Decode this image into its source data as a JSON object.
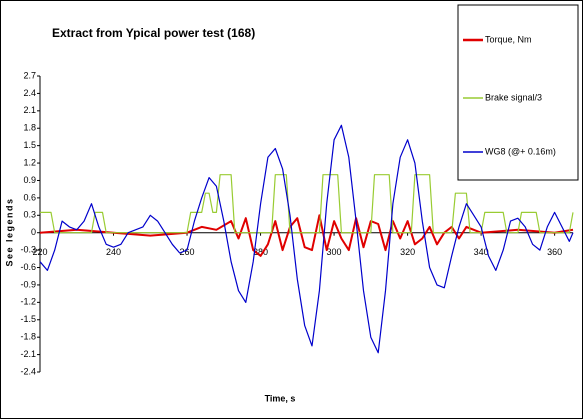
{
  "chart_data": {
    "type": "line",
    "title": "Extract from Ypical power test (168)",
    "x_label": "Time, s",
    "y_label": "See legends",
    "xlim": [
      220,
      365
    ],
    "xticks": [
      220,
      240,
      260,
      280,
      300,
      320,
      340,
      360
    ],
    "ylim": [
      -2.4,
      2.7
    ],
    "yticks": [
      2.7,
      2.4,
      2.1,
      1.8,
      1.5,
      1.2,
      0.9,
      0.6,
      0.3,
      0,
      -0.3,
      -0.6,
      -0.9,
      -1.2,
      -1.5,
      -1.8,
      -2.1,
      -2.4
    ],
    "grid": false,
    "legend": "right",
    "series": [
      {
        "name": "Torque, Nm",
        "color": "#e00000",
        "x": [
          220,
          230,
          240,
          250,
          260,
          264,
          268,
          272,
          274,
          276,
          278,
          280,
          282,
          284,
          286,
          288,
          290,
          292,
          294,
          296,
          298,
          300,
          302,
          304,
          306,
          308,
          310,
          312,
          314,
          316,
          318,
          320,
          322,
          324,
          326,
          328,
          330,
          332,
          334,
          336,
          340,
          350,
          360,
          365
        ],
        "values": [
          0,
          0.05,
          0,
          -0.05,
          0,
          0.1,
          0.05,
          0.2,
          -0.1,
          0.25,
          -0.3,
          -0.4,
          -0.2,
          0.2,
          -0.3,
          0.1,
          0.25,
          -0.25,
          -0.3,
          0.3,
          -0.3,
          0.2,
          -0.1,
          -0.3,
          0.25,
          -0.25,
          0.2,
          0.15,
          -0.3,
          0.2,
          -0.1,
          0.2,
          -0.2,
          -0.1,
          0.1,
          -0.2,
          0,
          0.1,
          -0.1,
          0.1,
          0,
          0.05,
          0,
          0.05
        ]
      },
      {
        "name": "Brake signal/3",
        "color": "#99cc33",
        "x": [
          220,
          223,
          224,
          234,
          235,
          237,
          238,
          260,
          261,
          264,
          265,
          266,
          267,
          268,
          269,
          272,
          273,
          283,
          284,
          287,
          288,
          296,
          297,
          301,
          302,
          310,
          311,
          315,
          316,
          321,
          322,
          326,
          327,
          332,
          333,
          336,
          337,
          340,
          341,
          346,
          347,
          350,
          351,
          355,
          356,
          364,
          365
        ],
        "values": [
          0.35,
          0.35,
          0,
          0,
          0.35,
          0.35,
          0,
          0,
          0.35,
          0.35,
          0.68,
          0.68,
          0.35,
          0.35,
          1.0,
          1.0,
          0,
          0,
          1.0,
          1.0,
          0,
          0,
          1.0,
          1.0,
          0,
          0,
          1.0,
          1.0,
          0,
          0,
          1.0,
          1.0,
          0,
          0,
          0.68,
          0.68,
          0,
          0,
          0.35,
          0.35,
          0,
          0,
          0.35,
          0.35,
          0,
          0,
          0.35
        ]
      },
      {
        "name": "WG8 (@+ 0.16m)",
        "color": "#0000cc",
        "x": [
          220,
          222,
          224,
          226,
          228,
          230,
          232,
          234,
          236,
          238,
          240,
          242,
          244,
          248,
          250,
          252,
          254,
          256,
          258,
          260,
          262,
          264,
          266,
          268,
          270,
          272,
          274,
          276,
          278,
          280,
          282,
          284,
          286,
          288,
          290,
          292,
          294,
          296,
          298,
          300,
          302,
          304,
          306,
          308,
          310,
          312,
          314,
          316,
          318,
          320,
          322,
          324,
          326,
          328,
          330,
          332,
          334,
          336,
          338,
          340,
          342,
          344,
          346,
          348,
          350,
          352,
          354,
          356,
          358,
          360,
          362,
          364,
          365
        ],
        "values": [
          -0.5,
          -0.65,
          -0.3,
          0.2,
          0.1,
          0.05,
          0.2,
          0.5,
          0.1,
          -0.2,
          -0.25,
          -0.2,
          0,
          0.1,
          0.3,
          0.2,
          0,
          -0.2,
          -0.35,
          -0.3,
          0.2,
          0.6,
          0.95,
          0.8,
          0.2,
          -0.5,
          -1.0,
          -1.2,
          -0.5,
          0.5,
          1.3,
          1.45,
          1.1,
          0.3,
          -0.8,
          -1.6,
          -1.95,
          -1.0,
          0.5,
          1.6,
          1.85,
          1.3,
          0.2,
          -1.0,
          -1.8,
          -2.07,
          -1.0,
          0.5,
          1.3,
          1.6,
          1.2,
          0.2,
          -0.6,
          -0.9,
          -0.95,
          -0.4,
          0.1,
          0.5,
          0.3,
          0.1,
          -0.4,
          -0.65,
          -0.3,
          0.2,
          0.25,
          0.1,
          -0.2,
          -0.3,
          0.1,
          0.35,
          0.1,
          -0.15,
          0
        ]
      }
    ]
  }
}
